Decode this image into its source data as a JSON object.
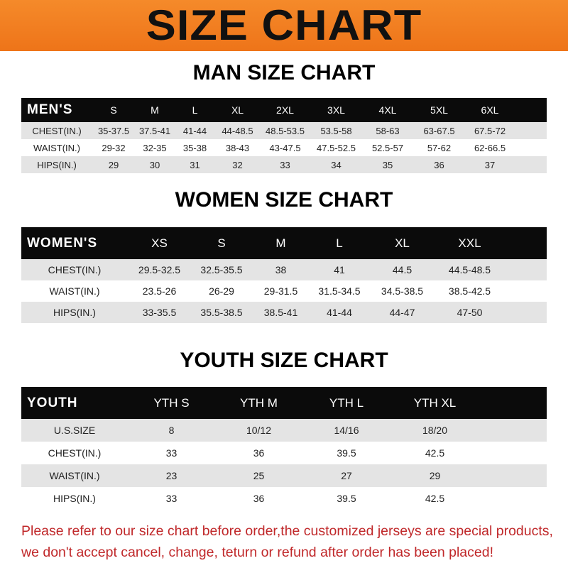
{
  "banner_title": "SIZE CHART",
  "men": {
    "title": "MAN SIZE CHART",
    "header": [
      "MEN'S",
      "S",
      "M",
      "L",
      "XL",
      "2XL",
      "3XL",
      "4XL",
      "5XL",
      "6XL"
    ],
    "rows": [
      [
        "CHEST(IN.)",
        "35-37.5",
        "37.5-41",
        "41-44",
        "44-48.5",
        "48.5-53.5",
        "53.5-58",
        "58-63",
        "63-67.5",
        "67.5-72"
      ],
      [
        "WAIST(IN.)",
        "29-32",
        "32-35",
        "35-38",
        "38-43",
        "43-47.5",
        "47.5-52.5",
        "52.5-57",
        "57-62",
        "62-66.5"
      ],
      [
        "HIPS(IN.)",
        "29",
        "30",
        "31",
        "32",
        "33",
        "34",
        "35",
        "36",
        "37"
      ]
    ]
  },
  "women": {
    "title": "WOMEN SIZE CHART",
    "header": [
      "WOMEN'S",
      "XS",
      "S",
      "M",
      "L",
      "XL",
      "XXL"
    ],
    "rows": [
      [
        "CHEST(IN.)",
        "29.5-32.5",
        "32.5-35.5",
        "38",
        "41",
        "44.5",
        "44.5-48.5"
      ],
      [
        "WAIST(IN.)",
        "23.5-26",
        "26-29",
        "29-31.5",
        "31.5-34.5",
        "34.5-38.5",
        "38.5-42.5"
      ],
      [
        "HIPS(IN.)",
        "33-35.5",
        "35.5-38.5",
        "38.5-41",
        "41-44",
        "44-47",
        "47-50"
      ]
    ]
  },
  "youth": {
    "title": "YOUTH SIZE CHART",
    "header": [
      "YOUTH",
      "YTH S",
      "YTH M",
      "YTH L",
      "YTH XL"
    ],
    "rows": [
      [
        "U.S.SIZE",
        "8",
        "10/12",
        "14/16",
        "18/20"
      ],
      [
        "CHEST(IN.)",
        "33",
        "36",
        "39.5",
        "42.5"
      ],
      [
        "WAIST(IN.)",
        "23",
        "25",
        "27",
        "29"
      ],
      [
        "HIPS(IN.)",
        "33",
        "36",
        "39.5",
        "42.5"
      ]
    ]
  },
  "note": {
    "line1": "Please refer to our size chart before order,the customized jerseys are special products,",
    "line2": "we don't accept cancel, change, teturn or refund after order has been placed!"
  },
  "colors": {
    "banner": "#f07a1e",
    "header_bg": "#0b0b0b",
    "row_alt": "#e4e4e4",
    "note": "#c0282a"
  }
}
